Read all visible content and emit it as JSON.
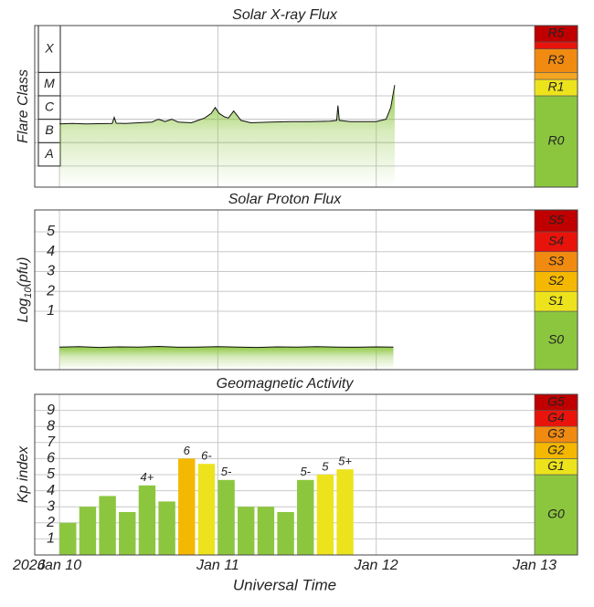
{
  "chart_data": [
    {
      "type": "area",
      "title": "Solar X-ray Flux",
      "ylabel": "Flare Class",
      "x": [
        0,
        2,
        4,
        6,
        8,
        8.3,
        8.6,
        10,
        12,
        14,
        15,
        15.5,
        16,
        17,
        18,
        20,
        21,
        22,
        23,
        23.6,
        24.2,
        25,
        25.6,
        26.4,
        27.5,
        29,
        32,
        35,
        38,
        41,
        42,
        42.2,
        42.4,
        44,
        46,
        48,
        49.5,
        50.2,
        50.8
      ],
      "values": [
        -6.2,
        -6.18,
        -6.2,
        -6.19,
        -6.18,
        -5.92,
        -6.17,
        -6.18,
        -6.15,
        -6.12,
        -6.0,
        -6.05,
        -6.1,
        -6.0,
        -6.12,
        -6.15,
        -6.05,
        -5.95,
        -5.75,
        -5.5,
        -5.75,
        -5.9,
        -5.95,
        -5.65,
        -6.05,
        -6.15,
        -6.12,
        -6.1,
        -6.1,
        -6.08,
        -6.05,
        -5.42,
        -6.05,
        -6.1,
        -6.1,
        -6.1,
        -6.0,
        -5.5,
        -4.54
      ],
      "color": "#8cc63f",
      "line_color": "#111111",
      "xlim": [
        -3.75,
        72
      ],
      "xticks": [
        0,
        24,
        48,
        72
      ],
      "ylim": [
        -8.9,
        -2
      ],
      "class_bands": [
        {
          "label": "A",
          "from": -8,
          "to": -7
        },
        {
          "label": "B",
          "from": -7,
          "to": -6
        },
        {
          "label": "C",
          "from": -6,
          "to": -5
        },
        {
          "label": "M",
          "from": -5,
          "to": -4
        },
        {
          "label": "X",
          "from": -4,
          "to": -2
        }
      ],
      "scale": [
        {
          "label": "R0",
          "color": "#8cc63f"
        },
        {
          "label": "R1",
          "from": -5,
          "color": "#ede31c"
        },
        {
          "label": null,
          "from": -4.3,
          "color": "#f5a623"
        },
        {
          "label": "R3",
          "from": -4,
          "color": "#f08a10"
        },
        {
          "label": null,
          "from": -3,
          "color": "#e8140c"
        },
        {
          "label": "R5",
          "from": -2.7,
          "color": "#c00000"
        }
      ]
    },
    {
      "type": "area",
      "title": "Solar Proton Flux",
      "ylabel": "Log",
      "ylabel_sub": "10",
      "ylabel_suffix": "(pfu)",
      "x": [
        0,
        3,
        6,
        9,
        12,
        15,
        18,
        21,
        24,
        27,
        30,
        33,
        36,
        39,
        42,
        45,
        48,
        50.6
      ],
      "values": [
        -0.8,
        -0.78,
        -0.82,
        -0.79,
        -0.8,
        -0.77,
        -0.81,
        -0.8,
        -0.78,
        -0.8,
        -0.82,
        -0.79,
        -0.8,
        -0.78,
        -0.8,
        -0.81,
        -0.79,
        -0.8
      ],
      "color": "#8cc63f",
      "line_color": "#111111",
      "xlim": [
        -3.75,
        72
      ],
      "xticks": [
        0,
        24,
        48,
        72
      ],
      "ylim": [
        -1.94,
        6.1
      ],
      "yticks": [
        1,
        2,
        3,
        4,
        5
      ],
      "scale": [
        {
          "label": "S0",
          "color": "#8cc63f"
        },
        {
          "label": "S1",
          "from": 1,
          "color": "#ede31c"
        },
        {
          "label": "S2",
          "from": 2,
          "color": "#f5b800"
        },
        {
          "label": "S3",
          "from": 3,
          "color": "#f08a10"
        },
        {
          "label": "S4",
          "from": 4,
          "color": "#e8140c"
        },
        {
          "label": "S5",
          "from": 5,
          "color": "#c00000"
        }
      ]
    },
    {
      "type": "bar",
      "title": "Geomagnetic Activity",
      "ylabel": "Kp index",
      "xlabel": "Universal Time",
      "year_label": "2026",
      "x": [
        0,
        3,
        6,
        9,
        12,
        15,
        18,
        21,
        24,
        27,
        30,
        33,
        36,
        39,
        42
      ],
      "values": [
        2,
        3,
        3.67,
        2.67,
        4.33,
        3.33,
        6,
        5.67,
        4.67,
        3,
        3,
        2.67,
        4.67,
        5,
        5.33
      ],
      "value_labels": [
        null,
        null,
        null,
        null,
        "4+",
        null,
        "6",
        "6-",
        "5-",
        null,
        null,
        null,
        "5-",
        "5",
        "5+"
      ],
      "colors": [
        "#8cc63f",
        "#8cc63f",
        "#8cc63f",
        "#8cc63f",
        "#8cc63f",
        "#8cc63f",
        "#f5b800",
        "#ede31c",
        "#8cc63f",
        "#8cc63f",
        "#8cc63f",
        "#8cc63f",
        "#8cc63f",
        "#ede31c",
        "#ede31c"
      ],
      "xlim": [
        -3.75,
        72
      ],
      "xticks": [
        {
          "value": 0,
          "label": "Jan 10"
        },
        {
          "value": 24,
          "label": "Jan 11"
        },
        {
          "value": 48,
          "label": "Jan 12"
        },
        {
          "value": 72,
          "label": "Jan 13"
        }
      ],
      "ylim": [
        0,
        10
      ],
      "yticks": [
        1,
        2,
        3,
        4,
        5,
        6,
        7,
        8,
        9
      ],
      "scale": [
        {
          "label": "G0",
          "color": "#8cc63f"
        },
        {
          "label": "G1",
          "from": 5,
          "color": "#ede31c"
        },
        {
          "label": "G2",
          "from": 6,
          "color": "#f5b800"
        },
        {
          "label": "G3",
          "from": 7,
          "color": "#f08a10"
        },
        {
          "label": "G4",
          "from": 8,
          "color": "#e8140c"
        },
        {
          "label": "G5",
          "from": 9,
          "color": "#c00000"
        }
      ]
    }
  ]
}
